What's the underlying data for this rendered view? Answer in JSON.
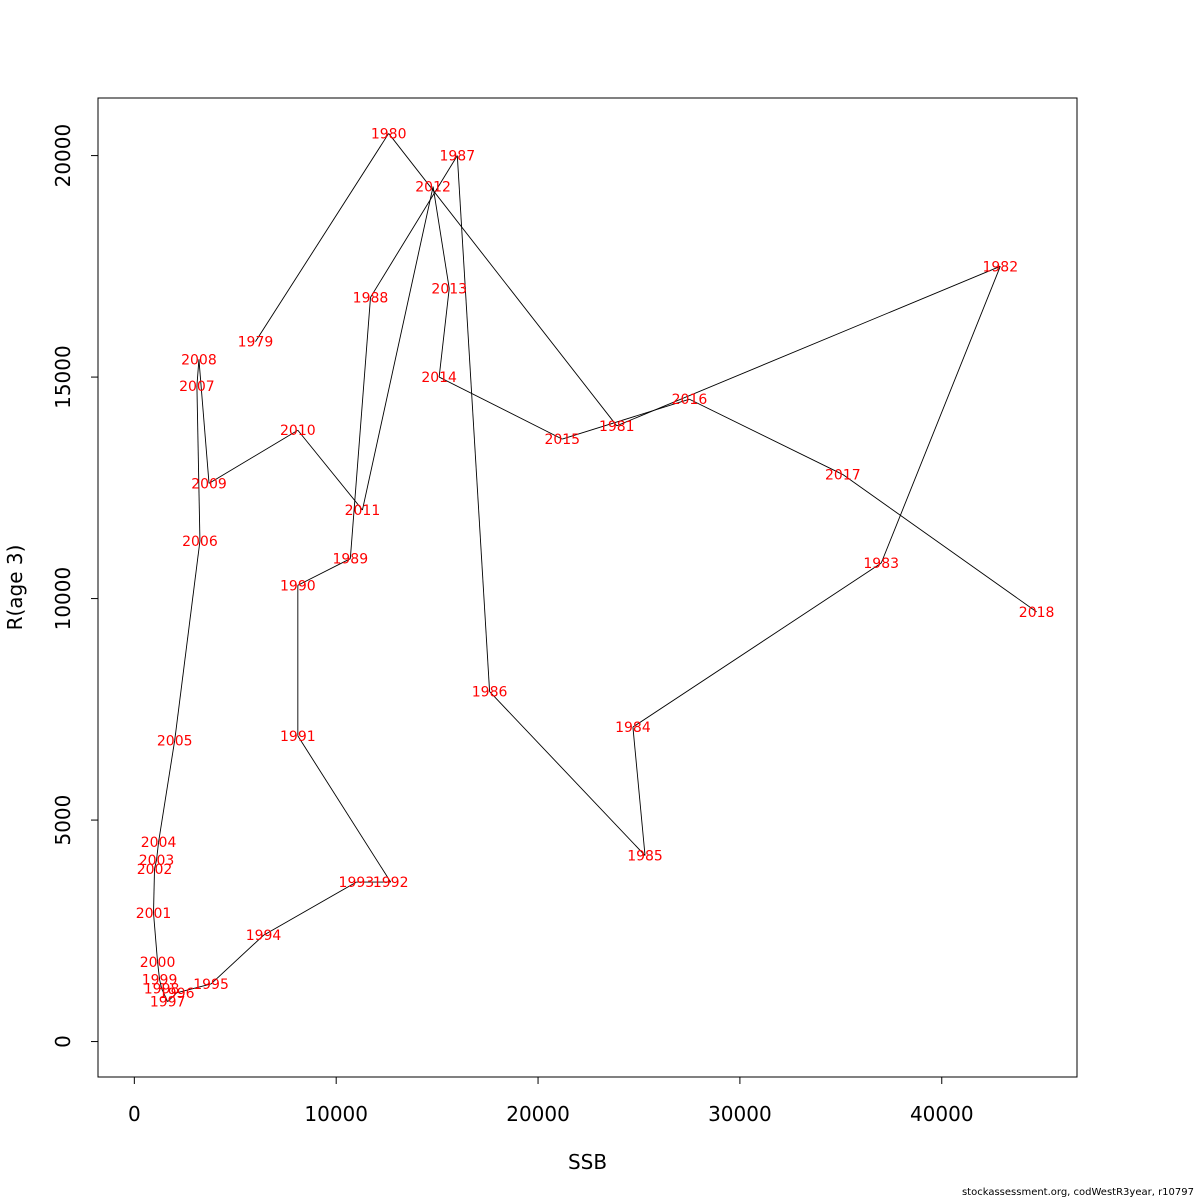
{
  "chart_data": {
    "type": "line",
    "xlabel": "SSB",
    "ylabel": "R(age 3)",
    "xlim": [
      -1800,
      46700
    ],
    "ylim": [
      -800,
      21300
    ],
    "xticks": [
      0,
      10000,
      20000,
      30000,
      40000
    ],
    "xtick_labels": [
      "0",
      "10000",
      "20000",
      "30000",
      "40000"
    ],
    "yticks": [
      0,
      5000,
      10000,
      15000,
      20000
    ],
    "ytick_labels": [
      "0",
      "5000",
      "10000",
      "15000",
      "20000"
    ],
    "grid": false,
    "line_color": "#000000",
    "label_color": "#ff0000",
    "points": [
      {
        "year": "1979",
        "x": 6000,
        "y": 15800
      },
      {
        "year": "1980",
        "x": 12600,
        "y": 20500
      },
      {
        "year": "1981",
        "x": 23900,
        "y": 13900
      },
      {
        "year": "1982",
        "x": 42900,
        "y": 17500
      },
      {
        "year": "1983",
        "x": 37000,
        "y": 10800
      },
      {
        "year": "1984",
        "x": 24700,
        "y": 7100
      },
      {
        "year": "1985",
        "x": 25300,
        "y": 4200
      },
      {
        "year": "1986",
        "x": 17600,
        "y": 7900
      },
      {
        "year": "1987",
        "x": 16000,
        "y": 20000
      },
      {
        "year": "1988",
        "x": 11700,
        "y": 16800
      },
      {
        "year": "1989",
        "x": 10700,
        "y": 10900
      },
      {
        "year": "1990",
        "x": 8100,
        "y": 10300
      },
      {
        "year": "1991",
        "x": 8100,
        "y": 6900
      },
      {
        "year": "1992",
        "x": 12700,
        "y": 3600
      },
      {
        "year": "1993",
        "x": 11000,
        "y": 3600
      },
      {
        "year": "1994",
        "x": 6400,
        "y": 2400
      },
      {
        "year": "1995",
        "x": 3800,
        "y": 1300
      },
      {
        "year": "1996",
        "x": 2100,
        "y": 1100
      },
      {
        "year": "1997",
        "x": 1650,
        "y": 900
      },
      {
        "year": "1998",
        "x": 1350,
        "y": 1200
      },
      {
        "year": "1999",
        "x": 1250,
        "y": 1400
      },
      {
        "year": "2000",
        "x": 1150,
        "y": 1800
      },
      {
        "year": "2001",
        "x": 950,
        "y": 2900
      },
      {
        "year": "2002",
        "x": 1000,
        "y": 3900
      },
      {
        "year": "2003",
        "x": 1100,
        "y": 4100
      },
      {
        "year": "2004",
        "x": 1200,
        "y": 4500
      },
      {
        "year": "2005",
        "x": 2000,
        "y": 6800
      },
      {
        "year": "2006",
        "x": 3250,
        "y": 11300
      },
      {
        "year": "2007",
        "x": 3100,
        "y": 14800
      },
      {
        "year": "2008",
        "x": 3200,
        "y": 15400
      },
      {
        "year": "2009",
        "x": 3700,
        "y": 12600
      },
      {
        "year": "2010",
        "x": 8100,
        "y": 13800
      },
      {
        "year": "2011",
        "x": 11300,
        "y": 12000
      },
      {
        "year": "2012",
        "x": 14800,
        "y": 19300
      },
      {
        "year": "2013",
        "x": 15600,
        "y": 17000
      },
      {
        "year": "2014",
        "x": 15100,
        "y": 15000
      },
      {
        "year": "2015",
        "x": 21200,
        "y": 13600
      },
      {
        "year": "2016",
        "x": 27500,
        "y": 14500
      },
      {
        "year": "2017",
        "x": 35100,
        "y": 12800
      },
      {
        "year": "2018",
        "x": 44700,
        "y": 9700
      }
    ]
  },
  "footer": "stockassessment.org, codWestR3year, r10797"
}
